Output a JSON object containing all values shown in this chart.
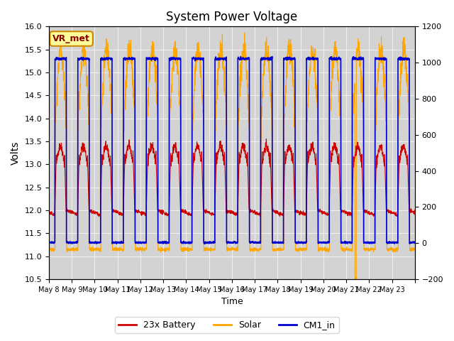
{
  "title": "System Power Voltage",
  "xlabel": "Time",
  "ylabel_left": "Volts",
  "ylim_left": [
    10.5,
    16.0
  ],
  "ylim_right": [
    -200,
    1200
  ],
  "left_yticks": [
    10.5,
    11.0,
    11.5,
    12.0,
    12.5,
    13.0,
    13.5,
    14.0,
    14.5,
    15.0,
    15.5,
    16.0
  ],
  "right_yticks": [
    -200,
    0,
    200,
    400,
    600,
    800,
    1000,
    1200
  ],
  "xtick_labels": [
    "May 8",
    "May 9",
    "May 10",
    "May 11",
    "May 12",
    "May 13",
    "May 14",
    "May 15",
    "May 16",
    "May 17",
    "May 18",
    "May 19",
    "May 20",
    "May 21",
    "May 22",
    "May 23"
  ],
  "num_days": 16,
  "color_battery": "#cc0000",
  "color_solar": "#ffa500",
  "color_cm1": "#0000cc",
  "bg_color": "#d3d3d3",
  "legend_labels": [
    "23x Battery",
    "Solar",
    "CM1_in"
  ],
  "vr_label": "VR_met",
  "vr_bg": "#ffff99",
  "vr_border": "#cc8800"
}
